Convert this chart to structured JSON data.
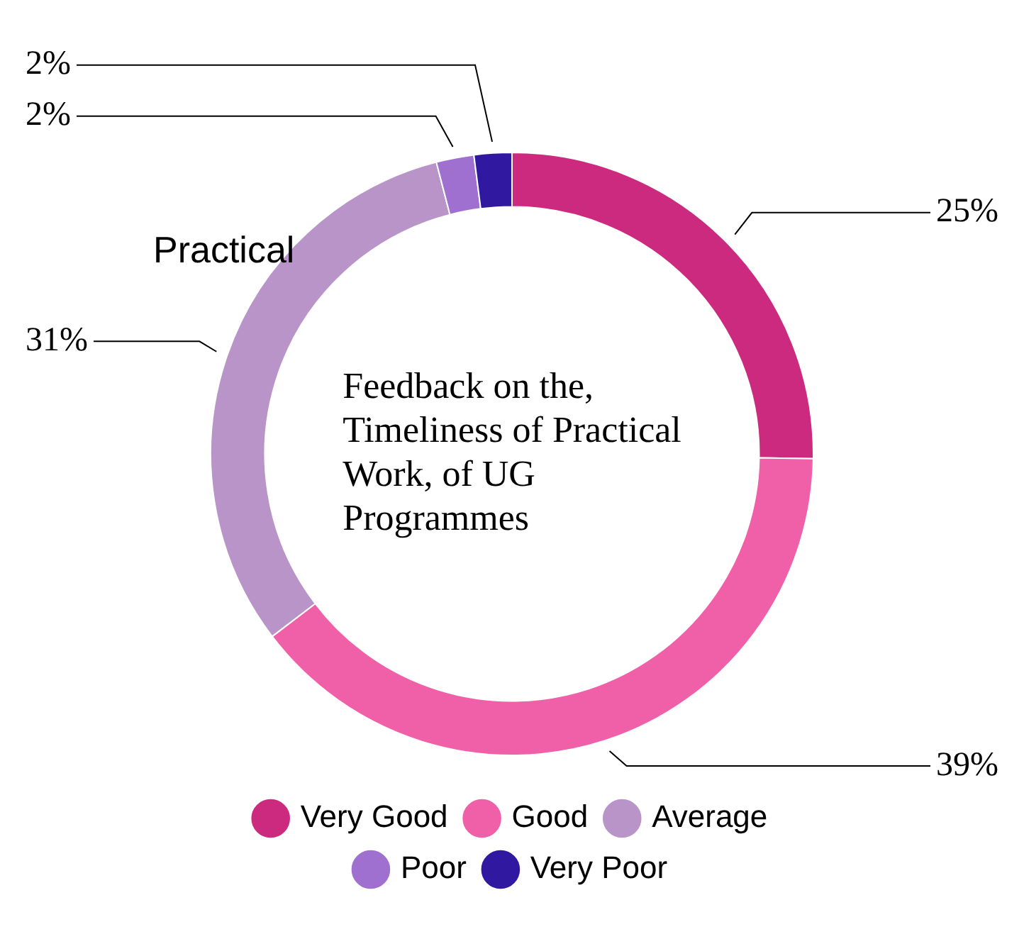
{
  "chart_data": {
    "type": "donut",
    "title": "Feedback on the, Timeliness of Practical Work, of UG Programmes",
    "categories": [
      "Very Good",
      "Good",
      "Average",
      "Poor",
      "Very Poor"
    ],
    "values": [
      25,
      39,
      31,
      2,
      2
    ],
    "value_labels": [
      "25%",
      "39%",
      "31%",
      "2%",
      "2%"
    ],
    "colors": [
      "#cc2a7e",
      "#f060a8",
      "#b894c8",
      "#a070d0",
      "#3018a0"
    ],
    "annotations": [
      "Practical"
    ],
    "legend": "bottom"
  }
}
